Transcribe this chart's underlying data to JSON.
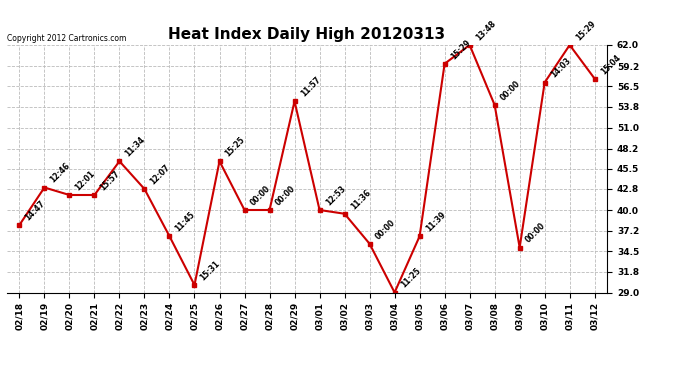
{
  "title": "Heat Index Daily High 20120313",
  "copyright": "Copyright 2012 Cartronics.com",
  "x_labels": [
    "02/18",
    "02/19",
    "02/20",
    "02/21",
    "02/22",
    "02/23",
    "02/24",
    "02/25",
    "02/26",
    "02/27",
    "02/28",
    "02/29",
    "03/01",
    "03/02",
    "03/03",
    "03/04",
    "03/05",
    "03/06",
    "03/07",
    "03/08",
    "03/09",
    "03/10",
    "03/11",
    "03/12"
  ],
  "y_values": [
    38.0,
    43.0,
    42.0,
    42.0,
    46.5,
    42.8,
    36.5,
    30.0,
    46.5,
    40.0,
    40.0,
    54.5,
    40.0,
    39.5,
    35.5,
    29.0,
    36.5,
    59.5,
    62.0,
    54.0,
    35.0,
    57.0,
    62.0,
    57.5
  ],
  "time_labels": [
    "14:47",
    "12:46",
    "12:01",
    "15:57",
    "11:34",
    "12:07",
    "11:45",
    "15:31",
    "15:25",
    "00:00",
    "00:00",
    "11:57",
    "12:53",
    "11:36",
    "00:00",
    "11:25",
    "11:39",
    "15:29",
    "13:48",
    "00:00",
    "00:00",
    "14:03",
    "15:29",
    "15:04"
  ],
  "y_ticks": [
    29.0,
    31.8,
    34.5,
    37.2,
    40.0,
    42.8,
    45.5,
    48.2,
    51.0,
    53.8,
    56.5,
    59.2,
    62.0
  ],
  "y_min": 29.0,
  "y_max": 62.0,
  "line_color": "#cc0000",
  "marker_color": "#cc0000",
  "bg_color": "#ffffff",
  "grid_color": "#bbbbbb",
  "title_fontsize": 11,
  "tick_fontsize": 6.5,
  "label_fontsize": 5.5,
  "copyright_fontsize": 5.5
}
